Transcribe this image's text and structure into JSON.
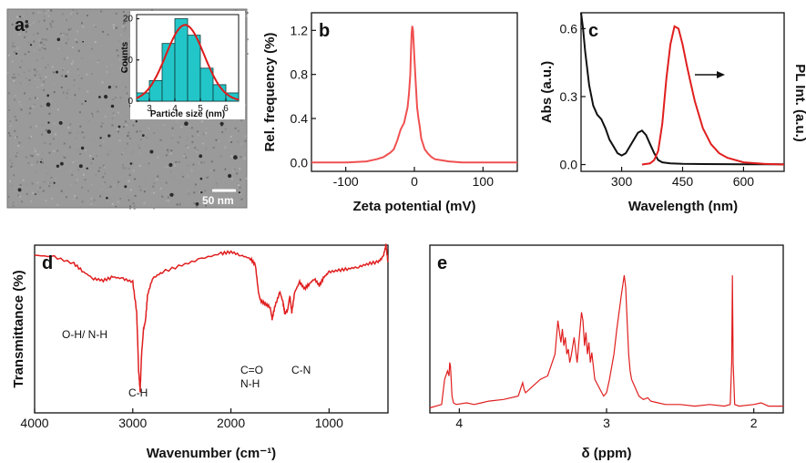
{
  "panels": {
    "a": {
      "letter": "a",
      "scale_bar": "50 nm",
      "inset_xlabel": "Particle size (nm)",
      "inset_ylabel": "Counts"
    },
    "b": {
      "letter": "b",
      "xlabel": "Zeta potential (mV)",
      "ylabel": "Rel. frequency (%)"
    },
    "c": {
      "letter": "c",
      "xlabel": "Wavelength (nm)",
      "ylabel": "Abs (a.u.)",
      "ylabel_right": "PL Int. (a.u.)"
    },
    "d": {
      "letter": "d",
      "xlabel": "Wavenumber (cm⁻¹)",
      "ylabel": "Transmittance (%)",
      "annotations": [
        "O-H/ N-H",
        "C-H",
        "C=O",
        "N-H",
        "C-N"
      ]
    },
    "e": {
      "letter": "e",
      "xlabel": "δ (ppm)"
    }
  },
  "chart_data": [
    {
      "panel": "a-inset",
      "type": "bar",
      "xlabel": "Particle size (nm)",
      "ylabel": "Counts",
      "bin_centers": [
        2.75,
        3.25,
        3.75,
        4.25,
        4.75,
        5.25,
        5.75,
        6.25
      ],
      "values": [
        2,
        5,
        14,
        20,
        16,
        8,
        4,
        2
      ],
      "xticks": [
        3,
        4,
        5,
        6
      ],
      "xlim": [
        2.5,
        6.5
      ],
      "yticks": [
        0,
        10,
        20
      ],
      "ylim": [
        0,
        21
      ],
      "fit": {
        "type": "gaussian",
        "center": 4.4,
        "peak": 18.5,
        "sigma": 0.75,
        "color": "#dd1b1b"
      },
      "bar_color": "#22c6c8"
    },
    {
      "panel": "b",
      "type": "line",
      "xlabel": "Zeta potential (mV)",
      "ylabel": "Rel. frequency (%)",
      "xticks": [
        -100,
        0,
        100
      ],
      "xlim": [
        -150,
        150
      ],
      "yticks": [
        0.0,
        0.4,
        0.8,
        1.2
      ],
      "ylim": [
        -0.08,
        1.36
      ],
      "series": [
        {
          "color": "#f05050",
          "x": [
            -150,
            -100,
            -70,
            -55,
            -45,
            -40,
            -35,
            -30,
            -25,
            -20,
            -15,
            -10,
            -8,
            -6,
            -5,
            -4,
            -3,
            -2,
            0,
            2,
            4,
            6,
            8,
            10,
            15,
            20,
            25,
            30,
            40,
            50,
            70,
            100,
            150
          ],
          "y": [
            0,
            0,
            0.01,
            0.03,
            0.05,
            0.07,
            0.09,
            0.12,
            0.2,
            0.3,
            0.36,
            0.5,
            0.62,
            0.8,
            1.0,
            1.18,
            1.24,
            1.2,
            0.95,
            0.72,
            0.5,
            0.4,
            0.32,
            0.22,
            0.12,
            0.08,
            0.05,
            0.03,
            0.02,
            0.01,
            0,
            0,
            0
          ]
        }
      ]
    },
    {
      "panel": "c",
      "type": "line",
      "xlabel": "Wavelength (nm)",
      "ylabel": "Abs (a.u.)",
      "xticks": [
        300,
        450,
        600
      ],
      "xlim": [
        200,
        700
      ],
      "yticks": [
        0.0,
        0.3,
        0.6
      ],
      "ylim": [
        -0.03,
        0.67
      ],
      "series": [
        {
          "role": "absorbance",
          "color": "#111111",
          "x": [
            200,
            205,
            210,
            220,
            230,
            240,
            250,
            260,
            270,
            280,
            290,
            300,
            310,
            320,
            330,
            340,
            350,
            360,
            370,
            380,
            390,
            400,
            420,
            450,
            500,
            600,
            700
          ],
          "y": [
            0.67,
            0.6,
            0.5,
            0.35,
            0.26,
            0.22,
            0.2,
            0.16,
            0.11,
            0.08,
            0.05,
            0.04,
            0.05,
            0.08,
            0.11,
            0.14,
            0.15,
            0.13,
            0.09,
            0.05,
            0.02,
            0.01,
            0.005,
            0.003,
            0.002,
            0.001,
            0.001
          ]
        },
        {
          "role": "photoluminescence",
          "color": "#e01e1e",
          "x": [
            350,
            370,
            380,
            390,
            400,
            410,
            420,
            430,
            440,
            450,
            460,
            470,
            480,
            500,
            520,
            540,
            560,
            600,
            650,
            700
          ],
          "y": [
            0,
            0.005,
            0.02,
            0.06,
            0.18,
            0.38,
            0.53,
            0.61,
            0.6,
            0.53,
            0.44,
            0.36,
            0.28,
            0.16,
            0.09,
            0.05,
            0.03,
            0.01,
            0.003,
            0
          ]
        }
      ],
      "arrow": {
        "direction": "right"
      }
    },
    {
      "panel": "d",
      "type": "line",
      "xlabel": "Wavenumber (cm⁻¹)",
      "ylabel": "Transmittance (%)",
      "xticks": [
        4000,
        3000,
        2000,
        1000
      ],
      "xlim": [
        4000,
        400
      ],
      "yticks": [],
      "ylim": [
        0,
        1
      ],
      "series": [
        {
          "color": "#e01e1e",
          "x": [
            4000,
            3800,
            3600,
            3500,
            3400,
            3300,
            3200,
            3100,
            3000,
            2960,
            2940,
            2925,
            2910,
            2890,
            2870,
            2850,
            2800,
            2700,
            2500,
            2300,
            2100,
            2000,
            1900,
            1800,
            1750,
            1720,
            1700,
            1650,
            1600,
            1580,
            1550,
            1500,
            1470,
            1450,
            1420,
            1400,
            1380,
            1350,
            1300,
            1250,
            1200,
            1150,
            1100,
            1050,
            1000,
            900,
            800,
            700,
            600,
            500,
            450,
            420,
            400
          ],
          "y": [
            0.94,
            0.93,
            0.89,
            0.84,
            0.8,
            0.79,
            0.81,
            0.8,
            0.78,
            0.6,
            0.25,
            0.13,
            0.35,
            0.5,
            0.55,
            0.7,
            0.8,
            0.84,
            0.88,
            0.92,
            0.95,
            0.96,
            0.94,
            0.92,
            0.88,
            0.72,
            0.67,
            0.65,
            0.63,
            0.56,
            0.64,
            0.72,
            0.66,
            0.59,
            0.62,
            0.7,
            0.6,
            0.72,
            0.78,
            0.74,
            0.77,
            0.8,
            0.76,
            0.81,
            0.84,
            0.85,
            0.86,
            0.87,
            0.89,
            0.9,
            0.93,
            1.0,
            0.9
          ]
        }
      ]
    },
    {
      "panel": "e",
      "type": "line",
      "xlabel": "δ (ppm)",
      "xticks": [
        4,
        3,
        2
      ],
      "xlim": [
        4.2,
        1.8
      ],
      "yticks": [],
      "ylim": [
        0,
        1
      ],
      "series": [
        {
          "color": "#e01e1e",
          "x": [
            4.2,
            4.12,
            4.1,
            4.08,
            4.07,
            4.065,
            4.06,
            4.055,
            4.05,
            4.04,
            4.02,
            3.95,
            3.9,
            3.85,
            3.8,
            3.7,
            3.6,
            3.57,
            3.56,
            3.55,
            3.5,
            3.45,
            3.4,
            3.35,
            3.33,
            3.32,
            3.31,
            3.3,
            3.29,
            3.28,
            3.27,
            3.26,
            3.25,
            3.24,
            3.22,
            3.2,
            3.18,
            3.17,
            3.16,
            3.15,
            3.14,
            3.13,
            3.12,
            3.11,
            3.1,
            3.08,
            3.05,
            3.02,
            3.0,
            2.98,
            2.95,
            2.93,
            2.9,
            2.88,
            2.87,
            2.86,
            2.85,
            2.84,
            2.83,
            2.8,
            2.78,
            2.75,
            2.72,
            2.7,
            2.65,
            2.6,
            2.5,
            2.4,
            2.3,
            2.2,
            2.16,
            2.15,
            2.145,
            2.14,
            2.13,
            2.1,
            2.0,
            1.95,
            1.9,
            1.8
          ],
          "y": [
            0.03,
            0.05,
            0.2,
            0.25,
            0.22,
            0.3,
            0.28,
            0.2,
            0.1,
            0.06,
            0.05,
            0.06,
            0.05,
            0.06,
            0.07,
            0.08,
            0.1,
            0.18,
            0.14,
            0.12,
            0.16,
            0.2,
            0.22,
            0.35,
            0.55,
            0.48,
            0.42,
            0.5,
            0.4,
            0.45,
            0.35,
            0.38,
            0.3,
            0.34,
            0.45,
            0.3,
            0.5,
            0.6,
            0.55,
            0.4,
            0.48,
            0.35,
            0.42,
            0.3,
            0.36,
            0.2,
            0.15,
            0.1,
            0.12,
            0.2,
            0.35,
            0.5,
            0.7,
            0.82,
            0.75,
            0.55,
            0.35,
            0.25,
            0.2,
            0.14,
            0.1,
            0.08,
            0.09,
            0.07,
            0.06,
            0.05,
            0.05,
            0.04,
            0.05,
            0.04,
            0.05,
            0.3,
            0.82,
            0.3,
            0.05,
            0.04,
            0.05,
            0.06,
            0.04,
            0.04
          ]
        }
      ]
    }
  ]
}
